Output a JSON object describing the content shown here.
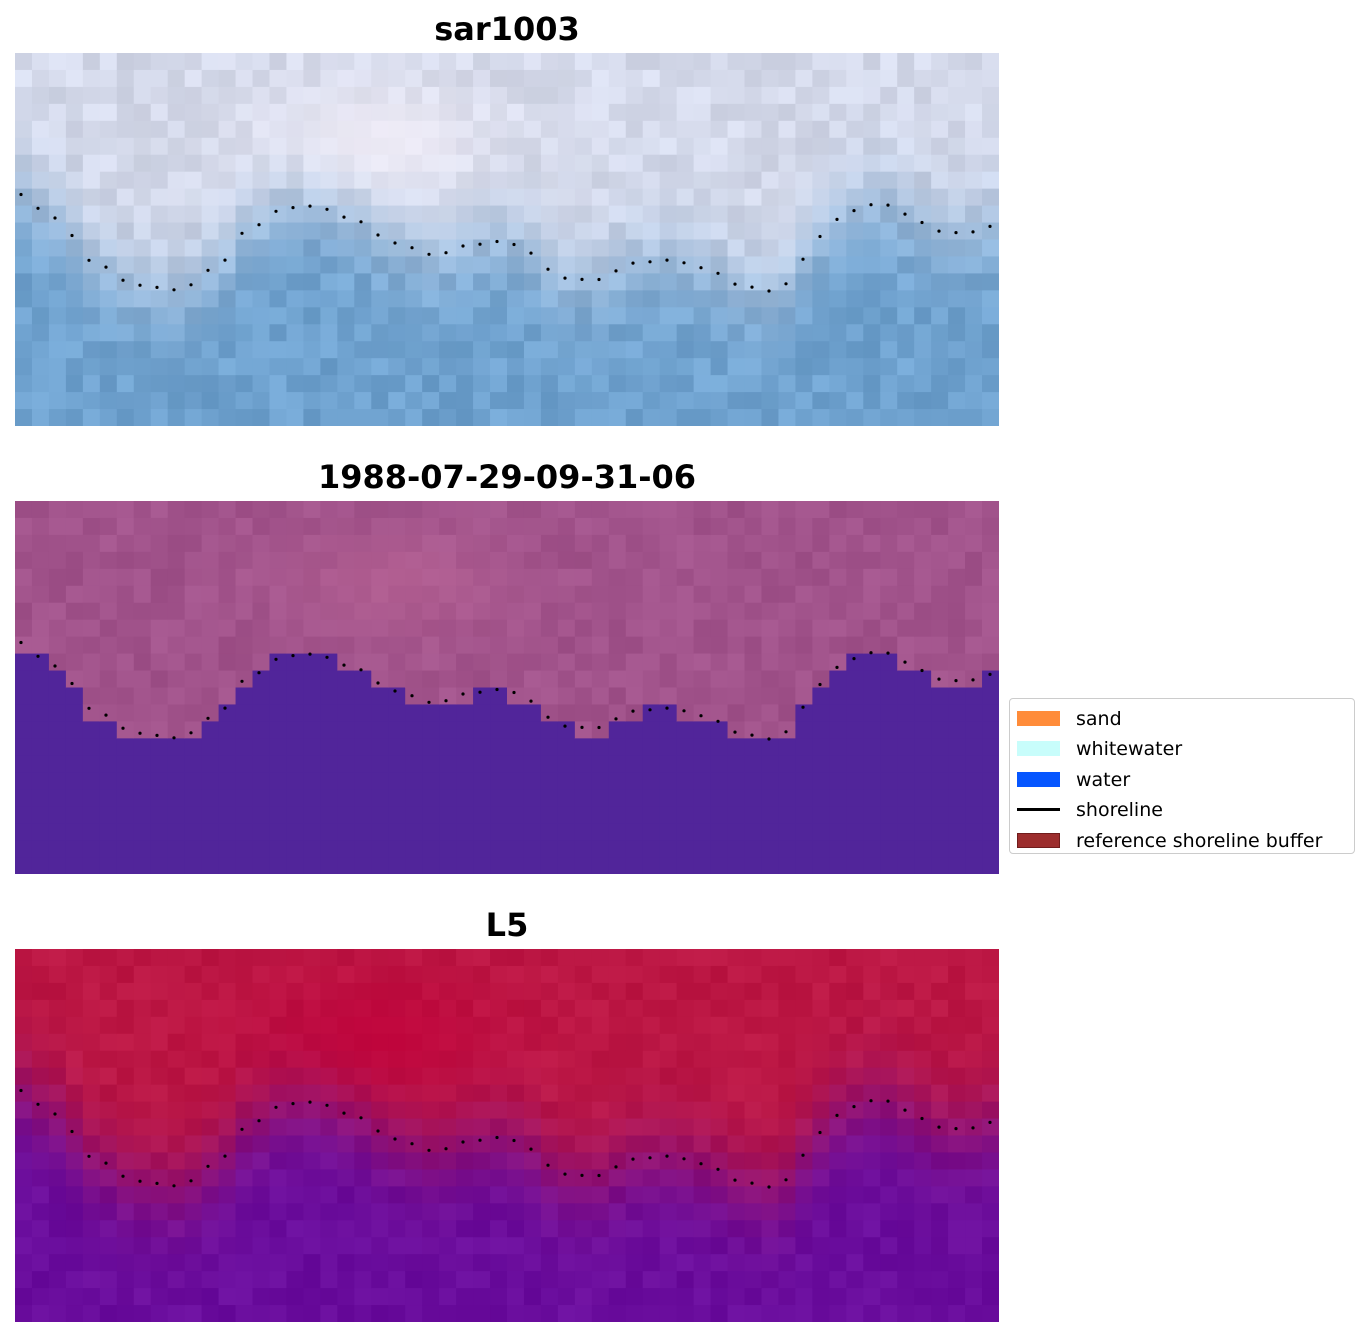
{
  "panels": [
    {
      "title": "sar1003",
      "style": "rgb"
    },
    {
      "title": "1988-07-29-09-31-06",
      "style": "classified"
    },
    {
      "title": "L5",
      "style": "index"
    }
  ],
  "legend": {
    "items": [
      {
        "label": "sand",
        "kind": "patch",
        "color": "#ff8c3a"
      },
      {
        "label": "whitewater",
        "kind": "patch",
        "color": "#c8fdfb"
      },
      {
        "label": "water",
        "kind": "patch",
        "color": "#0656ff"
      },
      {
        "label": "shoreline",
        "kind": "line",
        "color": "#000000"
      },
      {
        "label": "reference shoreline buffer",
        "kind": "patch",
        "color": "#9c2d2d",
        "edge": "#701c1c"
      }
    ]
  },
  "colors": {
    "rgb_land": "#d4d9ea",
    "rgb_water": "#6fa2cf",
    "classified_land": "#a1538b",
    "classified_water": "#51259a",
    "index_land": "#bc1744",
    "index_water": "#6a0d9d",
    "shoreline_dots": "#000000"
  }
}
